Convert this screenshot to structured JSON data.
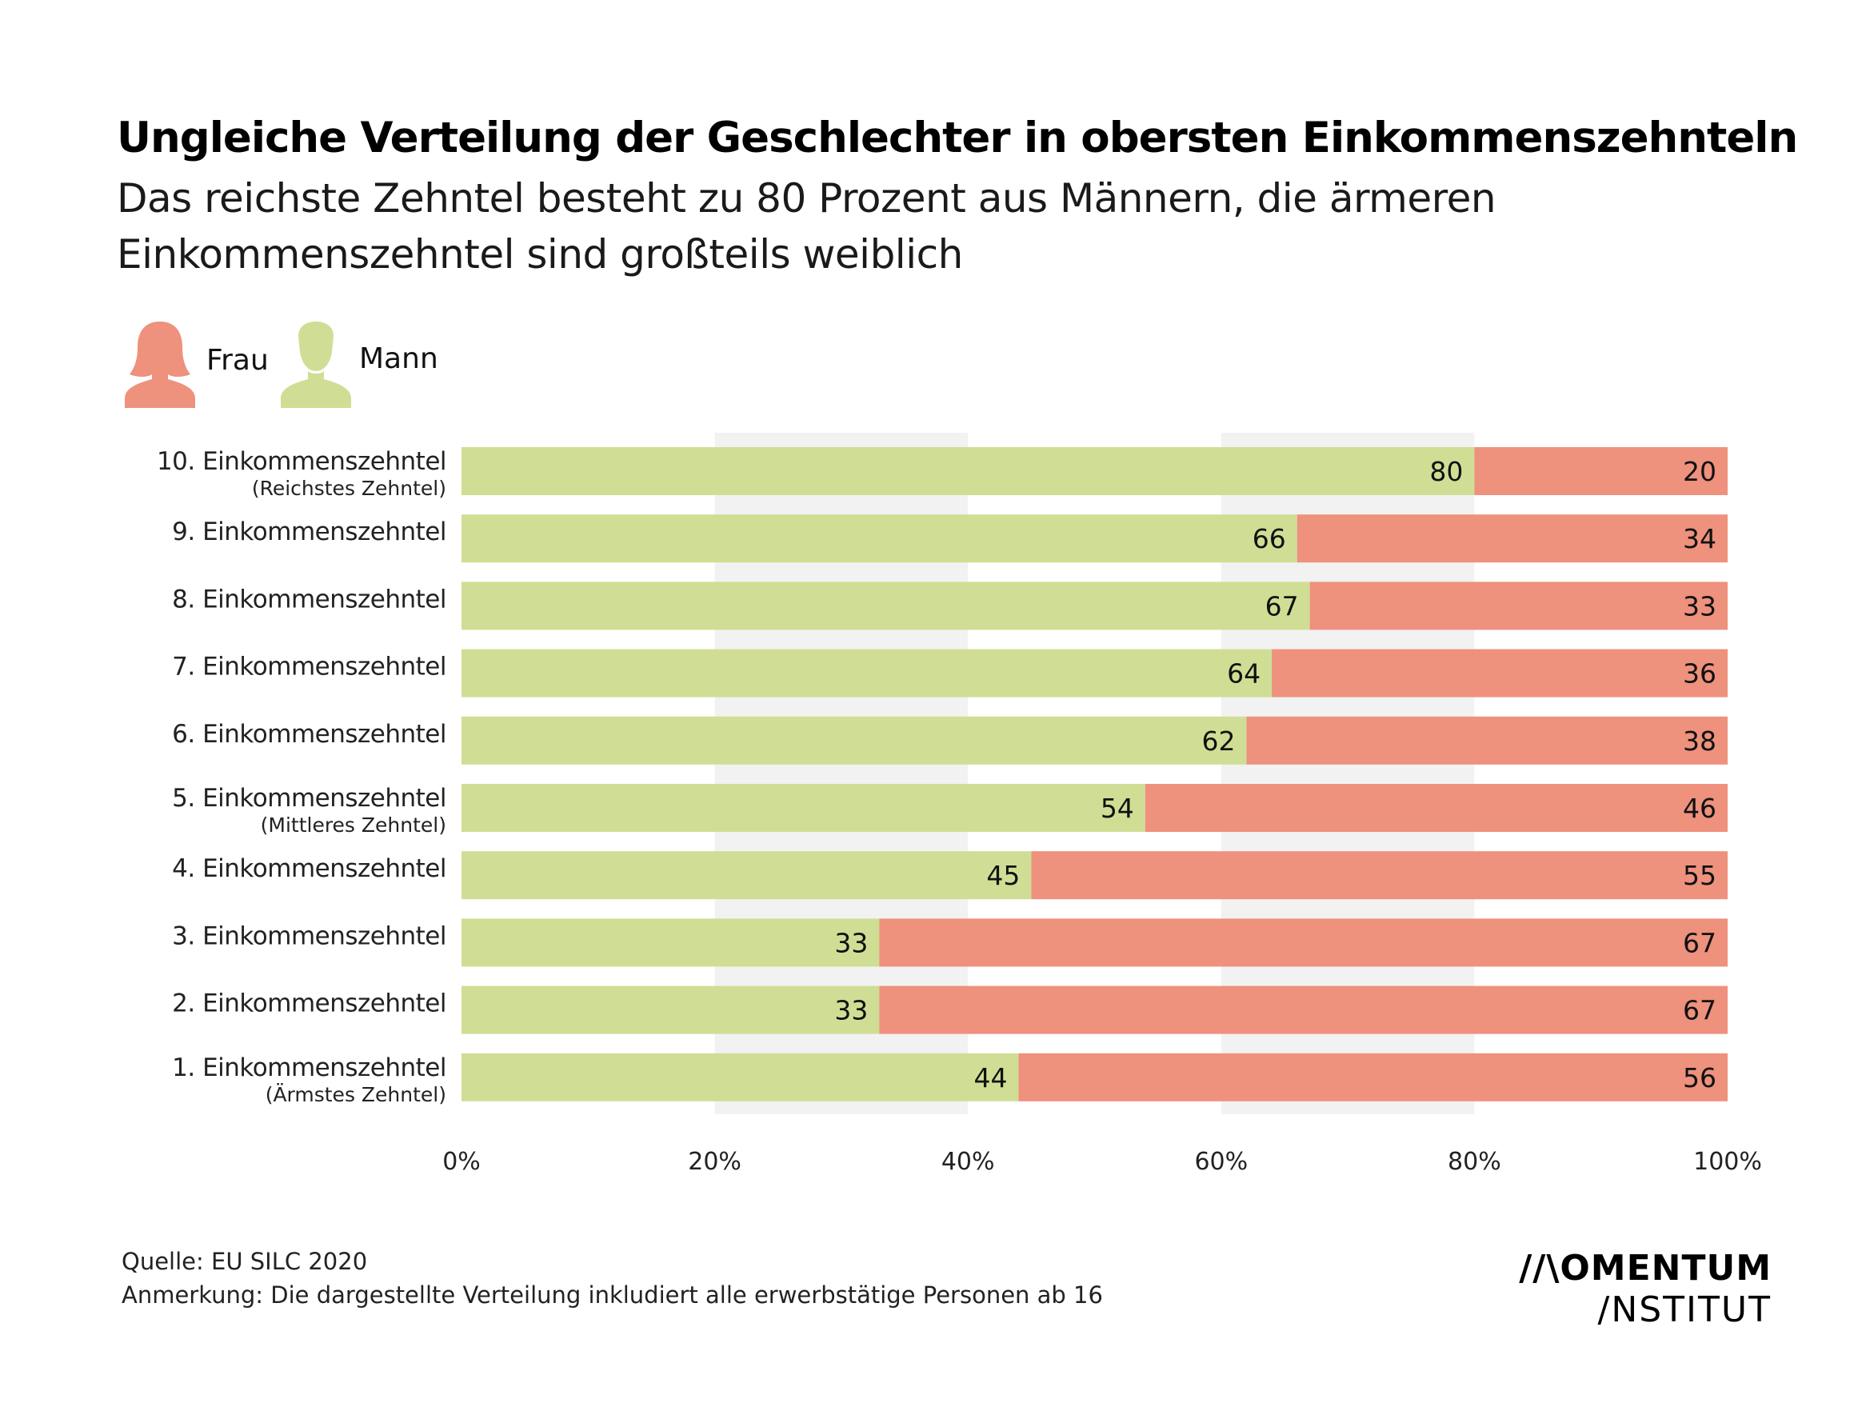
{
  "header": {
    "title": "Ungleiche Verteilung der Geschlechter in obersten Einkommenszehnteln",
    "subtitle": "Das reichste Zehntel besteht zu 80 Prozent aus Männern, die ärmeren Einkommenszehntel sind großteils weiblich"
  },
  "legend": {
    "frau": {
      "label": "Frau",
      "icon": "woman-icon",
      "color": "#EE917D"
    },
    "mann": {
      "label": "Mann",
      "icon": "man-icon",
      "color": "#CFDE94"
    }
  },
  "chart_data": {
    "type": "bar",
    "orientation": "horizontal",
    "stacked": true,
    "percent_stacked": true,
    "categories": [
      {
        "label": "10. Einkommenszehntel",
        "sublabel": "(Reichstes Zehntel)"
      },
      {
        "label": "9. Einkommenszehntel",
        "sublabel": ""
      },
      {
        "label": "8. Einkommenszehntel",
        "sublabel": ""
      },
      {
        "label": "7. Einkommenszehntel",
        "sublabel": ""
      },
      {
        "label": "6. Einkommenszehntel",
        "sublabel": ""
      },
      {
        "label": "5. Einkommenszehntel",
        "sublabel": "(Mittleres Zehntel)"
      },
      {
        "label": "4. Einkommenszehntel",
        "sublabel": ""
      },
      {
        "label": "3. Einkommenszehntel",
        "sublabel": ""
      },
      {
        "label": "2. Einkommenszehntel",
        "sublabel": ""
      },
      {
        "label": "1. Einkommenszehntel",
        "sublabel": "(Ärmstes Zehntel)"
      }
    ],
    "series": [
      {
        "name": "Mann",
        "color": "#CFDE94",
        "values": [
          80,
          66,
          67,
          64,
          62,
          54,
          45,
          33,
          33,
          44
        ]
      },
      {
        "name": "Frau",
        "color": "#EE917D",
        "values": [
          20,
          34,
          33,
          36,
          38,
          46,
          55,
          67,
          67,
          56
        ]
      }
    ],
    "xlim": [
      0,
      100
    ],
    "x_ticks": [
      "0%",
      "20%",
      "40%",
      "60%",
      "80%",
      "100%"
    ],
    "background_bands": true
  },
  "footer": {
    "source": "Quelle: EU SILC 2020",
    "note": "Anmerkung: Die dargestellte Verteilung inkludiert alle erwerbstätige Personen ab 16"
  },
  "logo": {
    "line1": "//\\OMENTUM",
    "line2": "/NSTITUT"
  }
}
